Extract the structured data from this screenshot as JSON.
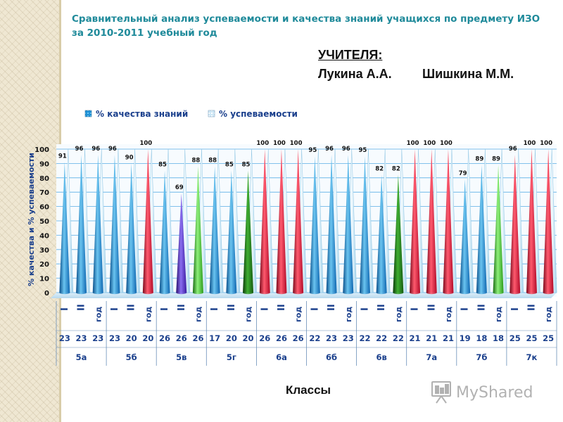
{
  "title": "Сравнительный анализ успеваемости и качества знаний учащихся по предмету ИЗО за 2010-2011 учебный год",
  "teachers": {
    "label": "УЧИТЕЛЯ:",
    "names": [
      "Лукина А.А.",
      "Шишкина М.М."
    ]
  },
  "watermark": "MyShared",
  "colors": {
    "title": "#1f8a9a",
    "axis_text": "#1a3f8c",
    "quality_legend": "#1e90d6",
    "progress_legend": "#cfe8f6"
  },
  "chart_data": {
    "type": "bar",
    "ylabel": "% качества и % успеваемости",
    "xlabel": "Классы",
    "ylim": [
      0,
      100
    ],
    "yticks": [
      0,
      10,
      20,
      30,
      40,
      50,
      60,
      70,
      80,
      90,
      100
    ],
    "grid": true,
    "legend_position": "top",
    "series": [
      {
        "name": "% качества знаний"
      },
      {
        "name": "% успеваемости"
      }
    ],
    "quarters": [
      "I",
      "II",
      "год",
      "I",
      "II",
      "год",
      "I",
      "II",
      "год",
      "I",
      "II",
      "год",
      "I",
      "II",
      "год",
      "I",
      "II",
      "год",
      "I",
      "II",
      "год",
      "I",
      "II",
      "год",
      "I",
      "II",
      "год",
      "I",
      "II",
      "год"
    ],
    "student_counts": [
      "23",
      "23",
      "23",
      "23",
      "20",
      "20",
      "26",
      "26",
      "26",
      "17",
      "20",
      "20",
      "26",
      "26",
      "26",
      "22",
      "23",
      "23",
      "22",
      "22",
      "22",
      "21",
      "21",
      "21",
      "19",
      "18",
      "18",
      "25",
      "25",
      "25"
    ],
    "groups": [
      "5а",
      "5б",
      "5в",
      "5г",
      "6а",
      "6б",
      "6в",
      "7а",
      "7б",
      "7к"
    ],
    "values": [
      91,
      96,
      96,
      96,
      90,
      100,
      85,
      69,
      88,
      88,
      85,
      85,
      100,
      100,
      100,
      95,
      96,
      96,
      95,
      82,
      82,
      100,
      100,
      100,
      79,
      89,
      89,
      96,
      100,
      100
    ],
    "cone_colors": [
      "blue",
      "blue",
      "blue",
      "blue",
      "blue",
      "red",
      "blue",
      "purple",
      "green",
      "blue",
      "blue",
      "darkgreen",
      "red",
      "red",
      "red",
      "blue",
      "blue",
      "blue",
      "blue",
      "blue",
      "darkgreen",
      "red",
      "red",
      "red",
      "blue",
      "blue",
      "green",
      "red",
      "red",
      "red"
    ]
  }
}
